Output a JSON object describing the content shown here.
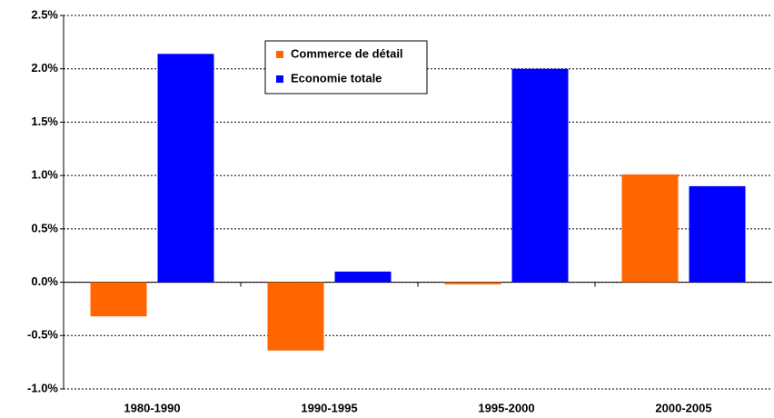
{
  "chart_data": {
    "type": "bar",
    "categories": [
      "1980-1990",
      "1990-1995",
      "1995-2000",
      "2000-2005"
    ],
    "series": [
      {
        "name": "Commerce de détail",
        "color": "#ff6600",
        "values": [
          -0.32,
          -0.64,
          -0.02,
          1.01
        ]
      },
      {
        "name": "Economie totale",
        "color": "#0000ff",
        "values": [
          2.14,
          0.1,
          2.0,
          0.9
        ]
      }
    ],
    "ylim": [
      -1.0,
      2.5
    ],
    "yticks": [
      {
        "value": -1.0,
        "label": "-1.0%"
      },
      {
        "value": -0.5,
        "label": "-0.5%"
      },
      {
        "value": 0,
        "label": "0.0%"
      },
      {
        "value": 0.5,
        "label": "0.5%"
      },
      {
        "value": 1.0,
        "label": "1.0%"
      },
      {
        "value": 1.5,
        "label": "1.5%"
      },
      {
        "value": 2.0,
        "label": "2.0%"
      },
      {
        "value": 2.5,
        "label": "2.5%"
      }
    ],
    "grid": true,
    "legend": "top"
  }
}
